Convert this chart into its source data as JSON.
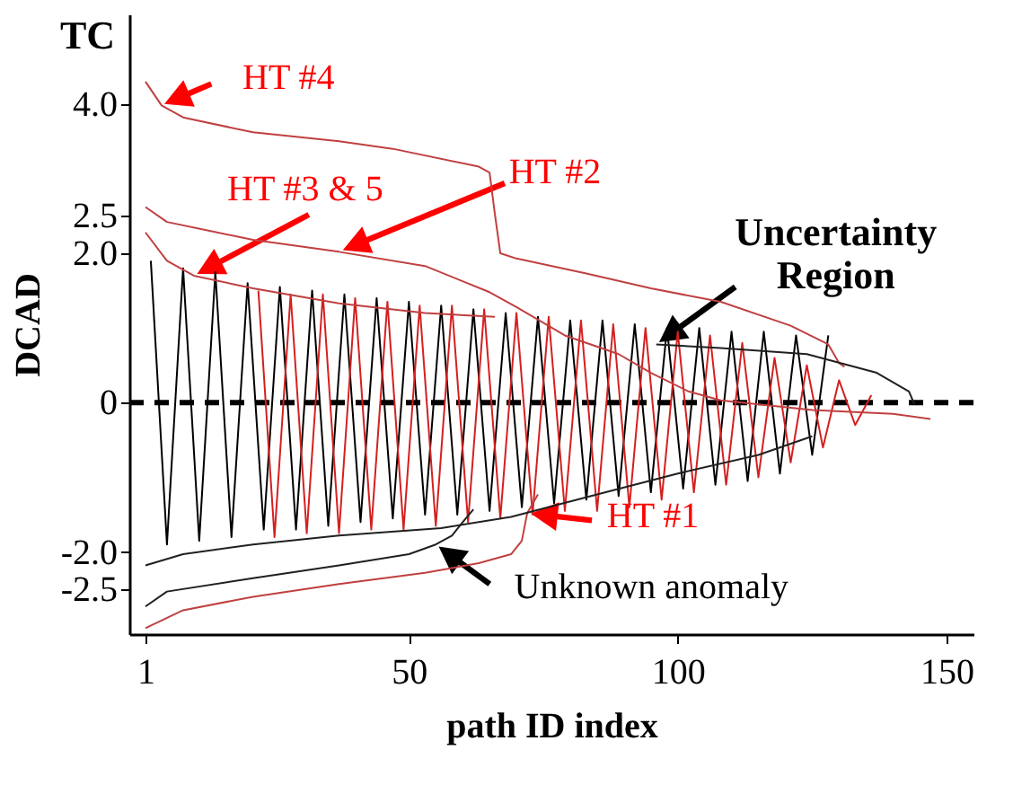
{
  "chart_data": {
    "type": "line",
    "xlabel": "path ID index",
    "ylabel": "DCAD",
    "xlim": [
      -2,
      155
    ],
    "ylim": [
      -3.1,
      5.2
    ],
    "xticks": [
      1,
      50,
      100,
      150
    ],
    "yticks": [
      {
        "value": 4,
        "label": "4.0"
      },
      {
        "value": 2.5,
        "label": "2.5"
      },
      {
        "value": 2,
        "label": "2.0"
      },
      0,
      {
        "value": -2,
        "label": "-2.0"
      },
      {
        "value": -2.5,
        "label": "-2.5"
      }
    ],
    "grid": false,
    "marker": "none",
    "series": [
      {
        "color": "#000000",
        "x": [
          2,
          5,
          8,
          11,
          14,
          17,
          20,
          23,
          26,
          29,
          32,
          35,
          38,
          41,
          44,
          47,
          50,
          53,
          56,
          59,
          62,
          65,
          68,
          71,
          74,
          77,
          80,
          83,
          86,
          89,
          92,
          95,
          98,
          101,
          104,
          107,
          110,
          113,
          116,
          119,
          122,
          125,
          128
        ],
        "values": [
          1.9,
          -1.9,
          1.8,
          -1.85,
          1.75,
          -1.8,
          1.6,
          -1.7,
          1.55,
          -1.7,
          1.5,
          -1.65,
          1.45,
          -1.6,
          1.4,
          -1.55,
          1.35,
          -1.5,
          1.3,
          -1.5,
          1.25,
          -1.45,
          1.2,
          -1.4,
          1.15,
          -1.35,
          1.1,
          -1.3,
          1.1,
          -1.25,
          1.05,
          -1.2,
          1.0,
          -1.15,
          1.0,
          -1.1,
          0.95,
          -1.05,
          0.95,
          -0.95,
          0.9,
          -0.7,
          0.9
        ]
      },
      {
        "color": "#d42020",
        "x": [
          22,
          25,
          28,
          31,
          34,
          37,
          40,
          43,
          46,
          49,
          52,
          55,
          58,
          61,
          64,
          67,
          70,
          73,
          76,
          79,
          82,
          85,
          88,
          91,
          94,
          97,
          100,
          103,
          106,
          109,
          112,
          115,
          118,
          121,
          124,
          127,
          130,
          133,
          136
        ],
        "values": [
          1.5,
          -1.8,
          1.45,
          -1.75,
          1.45,
          -1.75,
          1.4,
          -1.7,
          1.35,
          -1.7,
          1.3,
          -1.65,
          1.3,
          -1.6,
          1.25,
          -1.55,
          1.2,
          -1.5,
          1.15,
          -1.45,
          1.1,
          -1.45,
          1.05,
          -1.4,
          1.0,
          -1.3,
          0.95,
          -1.2,
          0.9,
          -1.1,
          0.8,
          -1.0,
          0.6,
          -0.8,
          0.5,
          -0.6,
          0.3,
          -0.3,
          0.1
        ]
      },
      {
        "color": "#c04040",
        "x": [
          1,
          4,
          8,
          21,
          37,
          47,
          63,
          65,
          66,
          67,
          70,
          83,
          95,
          108,
          121,
          128,
          130,
          131
        ],
        "values": [
          4.3,
          3.98,
          3.82,
          3.62,
          3.5,
          3.4,
          3.16,
          3.08,
          2.52,
          2.0,
          1.93,
          1.73,
          1.53,
          1.35,
          1.03,
          0.78,
          0.53,
          0.48
        ]
      },
      {
        "color": "#c04040",
        "x": [
          1,
          5,
          21,
          37,
          53,
          65,
          70,
          79,
          89,
          95,
          102,
          108,
          125,
          140,
          147
        ],
        "values": [
          2.62,
          2.42,
          2.18,
          2.02,
          1.83,
          1.48,
          1.28,
          0.9,
          0.65,
          0.4,
          0.15,
          0.03,
          -0.1,
          -0.15,
          -0.22
        ]
      },
      {
        "color": "#c04040",
        "x": [
          1,
          5,
          10,
          21,
          37,
          53,
          66
        ],
        "values": [
          2.28,
          1.9,
          1.7,
          1.53,
          1.33,
          1.2,
          1.15
        ]
      },
      {
        "color": "#c04040",
        "x": [
          1,
          8,
          21,
          37,
          53,
          63,
          69,
          71,
          72,
          74
        ],
        "values": [
          -3.02,
          -2.78,
          -2.6,
          -2.43,
          -2.28,
          -2.15,
          -2.03,
          -1.85,
          -1.48,
          -1.23
        ]
      },
      {
        "color": "#202020",
        "x": [
          1,
          5,
          21,
          37,
          50,
          55,
          58,
          60,
          62
        ],
        "values": [
          -2.73,
          -2.53,
          -2.35,
          -2.18,
          -2.03,
          -1.9,
          -1.78,
          -1.6,
          -1.43
        ]
      },
      {
        "color": "#202020",
        "x": [
          1,
          8,
          21,
          37,
          56,
          69,
          85,
          100,
          115,
          125
        ],
        "values": [
          -2.18,
          -2.03,
          -1.9,
          -1.78,
          -1.68,
          -1.53,
          -1.23,
          -0.95,
          -0.7,
          -0.45
        ]
      },
      {
        "color": "#202020",
        "x": [
          96,
          108,
          124,
          137,
          143,
          144
        ],
        "values": [
          0.78,
          0.73,
          0.65,
          0.4,
          0.15,
          -0.02
        ]
      }
    ],
    "ref_lines": [
      {
        "axis": "y",
        "value": 0,
        "color": "#000000",
        "line_style": "dashed"
      }
    ],
    "annotations": [
      "TC",
      {
        "text": "HT #4",
        "x": 3.9,
        "y": 3.98
      },
      {
        "text": "HT #3 & 5",
        "x": 10,
        "y": 1.7
      },
      "HT #2",
      {
        "text": "Uncertainty\nRegion",
        "x": 96,
        "y": 0.78
      },
      {
        "text": "HT #1",
        "x": 72,
        "y": -1.48
      },
      {
        "text": "Unknown anomaly",
        "x": 55,
        "y": -1.9
      }
    ]
  }
}
